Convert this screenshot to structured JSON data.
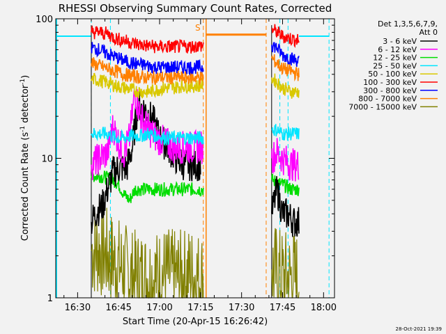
{
  "chart_data": {
    "type": "line",
    "title": "RHESSI Observing Summary Count Rates, Corrected",
    "xlabel": "Start Time (20-Apr-15 16:26:42)",
    "ylabel_main": "Corrected Count Rate (s",
    "ylabel_sup1": "-1",
    "ylabel_mid": " detector",
    "ylabel_sup2": "-1",
    "ylabel_end": ")",
    "yscale": "log",
    "ylim": [
      1,
      100
    ],
    "xlim": [
      "16:22",
      "18:04"
    ],
    "x_tick_labels": [
      "16:30",
      "16:45",
      "17:00",
      "17:15",
      "17:30",
      "17:45",
      "18:00"
    ],
    "y_tick_labels": [
      "1",
      "10",
      "100"
    ],
    "legend": {
      "header1": "Det 1,3,5,6,7,9,",
      "header2": "Att 0",
      "position": "top-right",
      "entries": [
        {
          "label": "3 - 6 keV",
          "color": "#000000"
        },
        {
          "label": "6 - 12 keV",
          "color": "#ff00ff"
        },
        {
          "label": "12 - 25 keV",
          "color": "#00dd00"
        },
        {
          "label": "25 - 50 keV",
          "color": "#00e5ff"
        },
        {
          "label": "50 - 100 keV",
          "color": "#d9c800"
        },
        {
          "label": "100 - 300 keV",
          "color": "#ff0000"
        },
        {
          "label": "300 - 800 keV",
          "color": "#0000ff"
        },
        {
          "label": "800 - 7000 keV",
          "color": "#ff8000"
        },
        {
          "label": "7000 - 15000 keV",
          "color": "#808000"
        }
      ]
    },
    "segments": [
      {
        "start": "16:35",
        "end": "17:16"
      },
      {
        "start": "17:41",
        "end": "17:51"
      }
    ],
    "series": [
      {
        "label_ref": 0,
        "color": "#000000",
        "points": [
          [
            "16:35",
            3.5
          ],
          [
            "16:37",
            4.2
          ],
          [
            "16:39",
            4.5
          ],
          [
            "16:41",
            6
          ],
          [
            "16:43",
            8
          ],
          [
            "16:45",
            8.5
          ],
          [
            "16:48",
            8.5
          ],
          [
            "16:50",
            12
          ],
          [
            "16:52",
            24
          ],
          [
            "16:55",
            22
          ],
          [
            "16:58",
            18
          ],
          [
            "17:00",
            14
          ],
          [
            "17:03",
            12
          ],
          [
            "17:06",
            10
          ],
          [
            "17:09",
            9
          ],
          [
            "17:12",
            9
          ],
          [
            "17:15",
            9
          ],
          [
            "17:41",
            4
          ],
          [
            "17:43",
            6
          ],
          [
            "17:45",
            4
          ],
          [
            "17:47",
            4
          ],
          [
            "17:49",
            3.5
          ],
          [
            "17:51",
            3.5
          ]
        ]
      },
      {
        "label_ref": 1,
        "color": "#ff00ff",
        "points": [
          [
            "16:35",
            9
          ],
          [
            "16:38",
            10
          ],
          [
            "16:41",
            11
          ],
          [
            "16:43",
            17
          ],
          [
            "16:45",
            13
          ],
          [
            "16:47",
            11
          ],
          [
            "16:49",
            14
          ],
          [
            "16:51",
            30
          ],
          [
            "16:53",
            20
          ],
          [
            "16:56",
            16
          ],
          [
            "16:59",
            14
          ],
          [
            "17:02",
            13
          ],
          [
            "17:05",
            12
          ],
          [
            "17:08",
            12
          ],
          [
            "17:11",
            12
          ],
          [
            "17:14",
            12
          ],
          [
            "17:16",
            12
          ],
          [
            "17:41",
            10
          ],
          [
            "17:43",
            11
          ],
          [
            "17:45",
            10
          ],
          [
            "17:48",
            9
          ],
          [
            "17:51",
            9
          ]
        ]
      },
      {
        "label_ref": 2,
        "color": "#00dd00",
        "points": [
          [
            "16:35",
            7.5
          ],
          [
            "16:38",
            7.5
          ],
          [
            "16:41",
            7.2
          ],
          [
            "16:43",
            7
          ],
          [
            "16:45",
            6.5
          ],
          [
            "16:47",
            5.5
          ],
          [
            "16:49",
            5
          ],
          [
            "16:51",
            6
          ],
          [
            "16:53",
            6
          ],
          [
            "16:56",
            6
          ],
          [
            "16:59",
            6
          ],
          [
            "17:02",
            6
          ],
          [
            "17:05",
            6
          ],
          [
            "17:08",
            6
          ],
          [
            "17:11",
            6
          ],
          [
            "17:14",
            6
          ],
          [
            "17:16",
            6
          ],
          [
            "17:41",
            7
          ],
          [
            "17:45",
            6.5
          ],
          [
            "17:48",
            6
          ],
          [
            "17:51",
            6
          ]
        ]
      },
      {
        "label_ref": 3,
        "color": "#00e5ff",
        "points": [
          [
            "16:35",
            15
          ],
          [
            "16:38",
            15
          ],
          [
            "16:41",
            15
          ],
          [
            "16:44",
            14
          ],
          [
            "16:47",
            14
          ],
          [
            "16:50",
            14.5
          ],
          [
            "16:53",
            14.5
          ],
          [
            "16:56",
            15
          ],
          [
            "16:59",
            14.5
          ],
          [
            "17:02",
            14
          ],
          [
            "17:05",
            14
          ],
          [
            "17:08",
            14
          ],
          [
            "17:11",
            14
          ],
          [
            "17:14",
            14
          ],
          [
            "17:16",
            14
          ],
          [
            "17:41",
            16
          ],
          [
            "17:43",
            16
          ],
          [
            "17:45",
            15
          ],
          [
            "17:48",
            15
          ],
          [
            "17:51",
            15
          ]
        ]
      },
      {
        "label_ref": 4,
        "color": "#d9c800",
        "points": [
          [
            "16:35",
            37
          ],
          [
            "16:38",
            36
          ],
          [
            "16:41",
            35
          ],
          [
            "16:44",
            33
          ],
          [
            "16:47",
            32
          ],
          [
            "16:50",
            31
          ],
          [
            "16:53",
            30
          ],
          [
            "16:56",
            30
          ],
          [
            "16:59",
            31
          ],
          [
            "17:02",
            32
          ],
          [
            "17:05",
            32
          ],
          [
            "17:08",
            33
          ],
          [
            "17:11",
            33
          ],
          [
            "17:14",
            33
          ],
          [
            "17:16",
            34
          ],
          [
            "17:41",
            38
          ],
          [
            "17:43",
            35
          ],
          [
            "17:45",
            32
          ],
          [
            "17:48",
            30
          ],
          [
            "17:51",
            30
          ]
        ]
      },
      {
        "label_ref": 5,
        "color": "#ff0000",
        "points": [
          [
            "16:35",
            80
          ],
          [
            "16:38",
            80
          ],
          [
            "16:41",
            78
          ],
          [
            "16:44",
            72
          ],
          [
            "16:47",
            70
          ],
          [
            "16:50",
            67
          ],
          [
            "16:53",
            65
          ],
          [
            "16:56",
            64
          ],
          [
            "16:59",
            63
          ],
          [
            "17:02",
            63
          ],
          [
            "17:05",
            63
          ],
          [
            "17:08",
            63
          ],
          [
            "17:11",
            63
          ],
          [
            "17:14",
            64
          ],
          [
            "17:16",
            64
          ],
          [
            "17:41",
            85
          ],
          [
            "17:43",
            80
          ],
          [
            "17:45",
            75
          ],
          [
            "17:48",
            72
          ],
          [
            "17:51",
            70
          ]
        ]
      },
      {
        "label_ref": 6,
        "color": "#0000ff",
        "points": [
          [
            "16:35",
            62
          ],
          [
            "16:38",
            60
          ],
          [
            "16:41",
            56
          ],
          [
            "16:44",
            53
          ],
          [
            "16:47",
            50
          ],
          [
            "16:50",
            48
          ],
          [
            "16:53",
            47
          ],
          [
            "16:56",
            46
          ],
          [
            "16:59",
            45
          ],
          [
            "17:02",
            45
          ],
          [
            "17:05",
            45
          ],
          [
            "17:08",
            45
          ],
          [
            "17:11",
            45
          ],
          [
            "17:14",
            45
          ],
          [
            "17:16",
            45
          ],
          [
            "17:41",
            65
          ],
          [
            "17:43",
            62
          ],
          [
            "17:45",
            55
          ],
          [
            "17:48",
            52
          ],
          [
            "17:51",
            50
          ]
        ]
      },
      {
        "label_ref": 7,
        "color": "#ff8000",
        "points": [
          [
            "16:35",
            48
          ],
          [
            "16:38",
            46
          ],
          [
            "16:41",
            44
          ],
          [
            "16:44",
            42
          ],
          [
            "16:47",
            40
          ],
          [
            "16:50",
            39
          ],
          [
            "16:53",
            38
          ],
          [
            "16:56",
            38
          ],
          [
            "16:59",
            38
          ],
          [
            "17:02",
            38
          ],
          [
            "17:05",
            38
          ],
          [
            "17:08",
            38
          ],
          [
            "17:11",
            38
          ],
          [
            "17:14",
            38
          ],
          [
            "17:16",
            38
          ],
          [
            "17:41",
            52
          ],
          [
            "17:43",
            48
          ],
          [
            "17:45",
            44
          ],
          [
            "17:48",
            42
          ],
          [
            "17:51",
            40
          ]
        ]
      },
      {
        "label_ref": 8,
        "color": "#808000",
        "points": [
          [
            "16:35",
            2.2
          ],
          [
            "16:38",
            2.2
          ],
          [
            "16:41",
            2.0
          ],
          [
            "16:44",
            1.8
          ],
          [
            "16:47",
            1.6
          ],
          [
            "16:50",
            1.4
          ],
          [
            "16:53",
            1.4
          ],
          [
            "16:56",
            1.4
          ],
          [
            "16:59",
            1.4
          ],
          [
            "17:02",
            1.5
          ],
          [
            "17:05",
            1.4
          ],
          [
            "17:08",
            1.4
          ],
          [
            "17:11",
            1.5
          ],
          [
            "17:14",
            1.4
          ],
          [
            "17:16",
            1.4
          ],
          [
            "17:41",
            1.6
          ],
          [
            "17:43",
            1.5
          ],
          [
            "17:45",
            1.4
          ],
          [
            "17:48",
            1.4
          ],
          [
            "17:51",
            1.4
          ]
        ]
      }
    ],
    "annotations": {
      "saa_label": "S",
      "saa_start": "17:16",
      "saa_end": "17:41",
      "saa_level": 77,
      "night_level": 75,
      "dashed_markers": [
        {
          "time": "16:35",
          "color": "#00e5ff"
        },
        {
          "time": "16:42",
          "color": "#00e5ff"
        },
        {
          "time": "17:16",
          "color": "#ff8000"
        },
        {
          "time": "17:39",
          "color": "#ff8000"
        },
        {
          "time": "17:44",
          "color": "#00e5ff"
        },
        {
          "time": "17:47",
          "color": "#00e5ff"
        },
        {
          "time": "18:02",
          "color": "#00e5ff"
        }
      ]
    },
    "footer_date": "28-Oct-2021 19:39"
  }
}
